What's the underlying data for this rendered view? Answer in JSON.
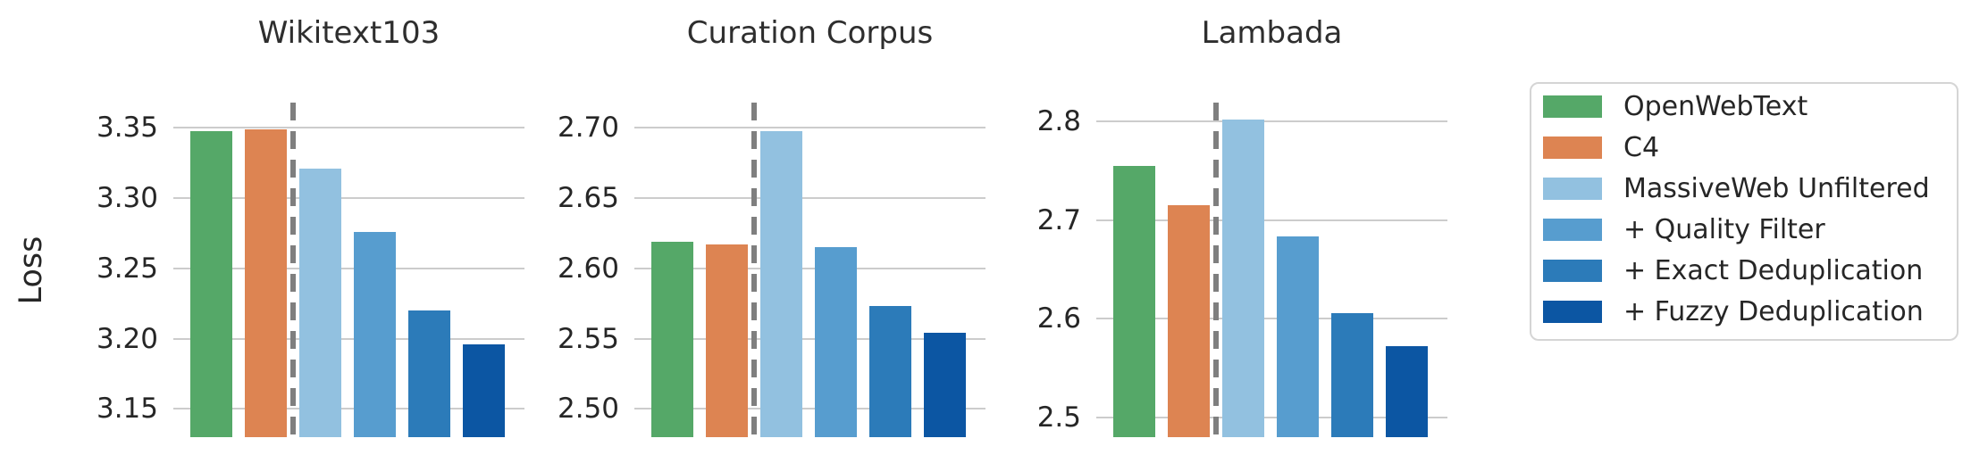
{
  "chart_data": {
    "type": "bar",
    "ylabel": "Loss",
    "grid": true,
    "legend_position": "right",
    "series_names": [
      "OpenWebText",
      "C4",
      "MassiveWeb Unfiltered",
      "+ Quality Filter",
      "+ Exact Deduplication",
      "+ Fuzzy Deduplication"
    ],
    "series_colors": [
      "#55a868",
      "#dd8452",
      "#92c1e0",
      "#579dcf",
      "#2c7bb9",
      "#0c56a3"
    ],
    "divider_after_series_index": 1,
    "panels": [
      {
        "title": "Wikitext103",
        "values": [
          3.348,
          3.349,
          3.321,
          3.276,
          3.22,
          3.196
        ],
        "ytick_labels": [
          "3.35",
          "3.30",
          "3.25",
          "3.20",
          "3.15"
        ],
        "ytick_values": [
          3.35,
          3.3,
          3.25,
          3.2,
          3.15
        ],
        "ylim": [
          3.13,
          3.368
        ]
      },
      {
        "title": "Curation Corpus",
        "values": [
          2.619,
          2.617,
          2.698,
          2.615,
          2.573,
          2.554
        ],
        "ytick_labels": [
          "2.70",
          "2.65",
          "2.60",
          "2.55",
          "2.50"
        ],
        "ytick_values": [
          2.7,
          2.65,
          2.6,
          2.55,
          2.5
        ],
        "ylim": [
          2.48,
          2.718
        ]
      },
      {
        "title": "Lambada",
        "values": [
          2.755,
          2.715,
          2.802,
          2.683,
          2.606,
          2.572
        ],
        "ytick_labels": [
          "2.8",
          "2.7",
          "2.6",
          "2.5"
        ],
        "ytick_values": [
          2.8,
          2.7,
          2.6,
          2.5
        ],
        "ylim": [
          2.48,
          2.819
        ]
      }
    ],
    "legend_labels": [
      "OpenWebText",
      "C4",
      "MassiveWeb Unfiltered",
      "+ Quality Filter",
      "+ Exact Deduplication",
      "+ Fuzzy Deduplication"
    ]
  },
  "styles": {
    "background": "#ffffff",
    "grid_color": "#cccccc",
    "divider_color": "#7f7f7f",
    "text_color": "#262626"
  }
}
